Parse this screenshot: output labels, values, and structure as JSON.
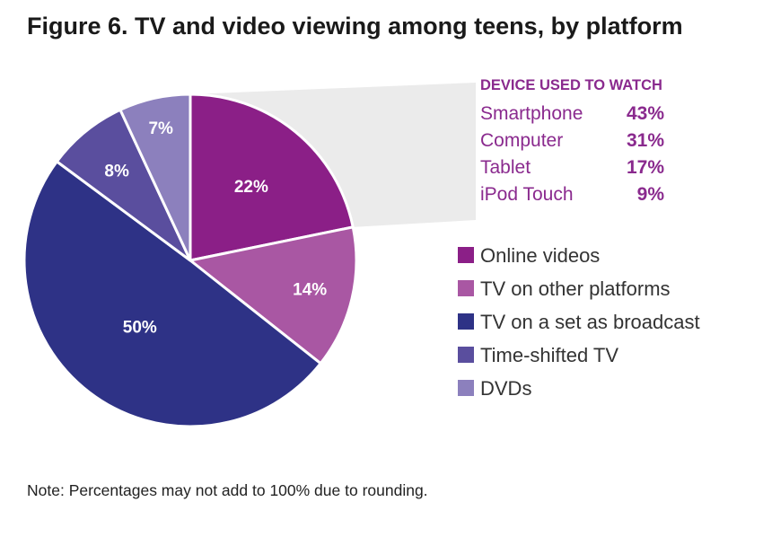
{
  "chart_data": {
    "type": "pie",
    "title": "Figure 6. TV and video viewing among teens, by platform",
    "slices": [
      {
        "name": "Online videos",
        "value": 22,
        "label": "22%",
        "color": "#8b1f87"
      },
      {
        "name": "TV on other platforms",
        "value": 14,
        "label": "14%",
        "color": "#a957a3"
      },
      {
        "name": "TV on a set as broadcast",
        "value": 50,
        "label": "50%",
        "color": "#2e3286"
      },
      {
        "name": "Time-shifted TV",
        "value": 8,
        "label": "8%",
        "color": "#5a4e9e"
      },
      {
        "name": "DVDs",
        "value": 7,
        "label": "7%",
        "color": "#8c80bd"
      }
    ],
    "legend": [
      "Online videos",
      "TV on other platforms",
      "TV on a set as broadcast",
      "Time-shifted TV",
      "DVDs"
    ],
    "legend_position": "right",
    "callout": {
      "header": "DEVICE USED TO WATCH",
      "rows": [
        {
          "name": "Smartphone",
          "value": "43%"
        },
        {
          "name": "Computer",
          "value": "31%"
        },
        {
          "name": "Tablet",
          "value": "17%"
        },
        {
          "name": "iPod Touch",
          "value": "9%"
        }
      ],
      "color": "#8a2a8e"
    },
    "note": "Note: Percentages may not add to 100% due to rounding."
  }
}
